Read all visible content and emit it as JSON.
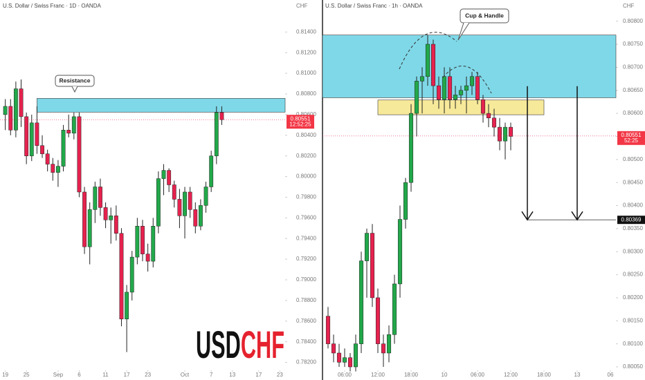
{
  "logo": {
    "base": "USD",
    "quote": "CHF"
  },
  "chart_data": [
    {
      "type": "candlestick",
      "title": "U.S. Dollar / Swiss Franc · 1D · OANDA",
      "y_axis_label": "CHF",
      "up_color": "#22a84a",
      "down_color": "#e5224e",
      "open": [
        0.806,
        0.8068,
        0.8045,
        0.8085,
        0.8058,
        0.802,
        0.8052,
        0.803,
        0.8022,
        0.8012,
        0.8004,
        0.801,
        0.8045,
        0.8042,
        0.8058,
        0.7985,
        0.7932,
        0.7968,
        0.799,
        0.797,
        0.7958,
        0.7962,
        0.7945,
        0.7862,
        0.7888,
        0.7922,
        0.7952,
        0.7925,
        0.7918,
        0.7952,
        0.7998,
        0.8006,
        0.7992,
        0.7978,
        0.7962,
        0.7985,
        0.7968,
        0.7952,
        0.7972,
        0.799,
        0.802,
        0.8062
      ],
      "high": [
        0.8075,
        0.8075,
        0.8092,
        0.8094,
        0.8062,
        0.806,
        0.8068,
        0.804,
        0.8026,
        0.8018,
        0.8016,
        0.805,
        0.806,
        0.8062,
        0.8062,
        0.799,
        0.7975,
        0.7995,
        0.7998,
        0.7975,
        0.797,
        0.7972,
        0.795,
        0.7895,
        0.7928,
        0.796,
        0.7958,
        0.7935,
        0.796,
        0.8005,
        0.8012,
        0.8008,
        0.7996,
        0.7988,
        0.799,
        0.799,
        0.7975,
        0.7978,
        0.7995,
        0.8025,
        0.8068,
        0.8068
      ],
      "low": [
        0.8045,
        0.804,
        0.8038,
        0.8048,
        0.8012,
        0.8015,
        0.8022,
        0.8018,
        0.8005,
        0.7996,
        0.799,
        0.8005,
        0.8038,
        0.8036,
        0.798,
        0.7925,
        0.7915,
        0.7955,
        0.7962,
        0.795,
        0.7935,
        0.7938,
        0.7855,
        0.783,
        0.788,
        0.7915,
        0.7918,
        0.7908,
        0.7912,
        0.7945,
        0.7982,
        0.7985,
        0.797,
        0.795,
        0.794,
        0.796,
        0.7945,
        0.7948,
        0.7965,
        0.7985,
        0.8012,
        0.805
      ],
      "close": [
        0.8068,
        0.8045,
        0.8085,
        0.8058,
        0.802,
        0.8052,
        0.803,
        0.8022,
        0.8012,
        0.8004,
        0.801,
        0.8045,
        0.8042,
        0.8058,
        0.7985,
        0.7932,
        0.7968,
        0.799,
        0.797,
        0.7958,
        0.7962,
        0.7945,
        0.7862,
        0.7888,
        0.7922,
        0.7952,
        0.7925,
        0.7918,
        0.7952,
        0.7998,
        0.8006,
        0.7992,
        0.7978,
        0.7962,
        0.7985,
        0.7968,
        0.7952,
        0.7972,
        0.799,
        0.802,
        0.8062,
        0.8055
      ],
      "xlim": [
        -1,
        53
      ],
      "xticks": [
        {
          "value": 0,
          "label": "19"
        },
        {
          "value": 4,
          "label": "25"
        },
        {
          "value": 10,
          "label": "Sep"
        },
        {
          "value": 14,
          "label": "6"
        },
        {
          "value": 19,
          "label": "11"
        },
        {
          "value": 23,
          "label": "17"
        },
        {
          "value": 27,
          "label": "23"
        },
        {
          "value": 34,
          "label": "Oct"
        },
        {
          "value": 39,
          "label": "7"
        },
        {
          "value": 43,
          "label": "13"
        },
        {
          "value": 48,
          "label": "17"
        },
        {
          "value": 52,
          "label": "23"
        }
      ],
      "ylim": [
        0.7813,
        0.8171
      ],
      "yticks": [
        {
          "value": 0.782,
          "label": "0.78200"
        },
        {
          "value": 0.784,
          "label": "0.78400"
        },
        {
          "value": 0.786,
          "label": "0.78600"
        },
        {
          "value": 0.788,
          "label": "0.78800"
        },
        {
          "value": 0.79,
          "label": "0.79000"
        },
        {
          "value": 0.792,
          "label": "0.79200"
        },
        {
          "value": 0.794,
          "label": "0.79400"
        },
        {
          "value": 0.796,
          "label": "0.79600"
        },
        {
          "value": 0.798,
          "label": "0.79800"
        },
        {
          "value": 0.8,
          "label": "0.80000"
        },
        {
          "value": 0.802,
          "label": "0.80200"
        },
        {
          "value": 0.804,
          "label": "0.80400"
        },
        {
          "value": 0.806,
          "label": "0.80600"
        },
        {
          "value": 0.808,
          "label": "0.80800"
        },
        {
          "value": 0.81,
          "label": "0.81000"
        },
        {
          "value": 0.812,
          "label": "0.81200"
        },
        {
          "value": 0.814,
          "label": "0.81400"
        }
      ],
      "zones": [
        {
          "from": 0.80624,
          "to": 0.80757,
          "x_from": 6,
          "color": "#7fd8e8",
          "annotation": "Resistance"
        }
      ],
      "last_price": {
        "value": 0.80551,
        "label": "0.80551",
        "countdown": "12:52:25"
      }
    },
    {
      "type": "candlestick",
      "title": "U.S. Dollar / Swiss Franc · 1h · OANDA",
      "y_axis_label": "CHF",
      "up_color": "#22a84a",
      "down_color": "#e5224e",
      "open": [
        0.8016,
        0.801,
        0.8008,
        0.8006,
        0.8007,
        0.8005,
        0.801,
        0.8028,
        0.8034,
        0.802,
        0.801,
        0.8008,
        0.8012,
        0.8023,
        0.8037,
        0.8045,
        0.806,
        0.8067,
        0.8068,
        0.8075,
        0.8066,
        0.8063,
        0.8068,
        0.8063,
        0.8064,
        0.8065,
        0.8066,
        0.8068,
        0.8063,
        0.806,
        0.8059,
        0.8057,
        0.8054,
        0.8057
      ],
      "high": [
        0.8018,
        0.8012,
        0.801,
        0.8009,
        0.8008,
        0.8012,
        0.803,
        0.8035,
        0.8036,
        0.8022,
        0.8012,
        0.8014,
        0.8025,
        0.804,
        0.8046,
        0.8062,
        0.8068,
        0.807,
        0.8077,
        0.8076,
        0.8068,
        0.807,
        0.807,
        0.8066,
        0.8066,
        0.8068,
        0.8069,
        0.8069,
        0.8064,
        0.8062,
        0.8061,
        0.8059,
        0.8058,
        0.8058
      ],
      "low": [
        0.8009,
        0.8006,
        0.8005,
        0.8005,
        0.8004,
        0.8004,
        0.8008,
        0.802,
        0.8018,
        0.8008,
        0.8005,
        0.8006,
        0.801,
        0.802,
        0.8035,
        0.8043,
        0.8055,
        0.806,
        0.8066,
        0.8062,
        0.8061,
        0.806,
        0.8061,
        0.8061,
        0.8062,
        0.806,
        0.8064,
        0.8062,
        0.8058,
        0.8057,
        0.8055,
        0.8052,
        0.805,
        0.8052
      ],
      "close": [
        0.801,
        0.8008,
        0.8006,
        0.8007,
        0.8005,
        0.801,
        0.8028,
        0.8034,
        0.802,
        0.801,
        0.8008,
        0.8012,
        0.8023,
        0.8037,
        0.8045,
        0.806,
        0.8067,
        0.8068,
        0.8075,
        0.8066,
        0.8063,
        0.8068,
        0.8063,
        0.8064,
        0.8065,
        0.8066,
        0.8068,
        0.8063,
        0.806,
        0.8059,
        0.8057,
        0.8054,
        0.8057,
        0.8055
      ],
      "xlim": [
        -1,
        52
      ],
      "xticks": [
        {
          "value": 3,
          "label": "06:00"
        },
        {
          "value": 9,
          "label": "12:00"
        },
        {
          "value": 15,
          "label": "18:00"
        },
        {
          "value": 21,
          "label": "10"
        },
        {
          "value": 27,
          "label": "06:00"
        },
        {
          "value": 33,
          "label": "12:00"
        },
        {
          "value": 39,
          "label": "18:00"
        },
        {
          "value": 45,
          "label": "13"
        },
        {
          "value": 51,
          "label": "06"
        }
      ],
      "ylim": [
        0.80044,
        0.80846
      ],
      "yticks": [
        {
          "value": 0.8005,
          "label": "0.80050"
        },
        {
          "value": 0.801,
          "label": "0.80100"
        },
        {
          "value": 0.8015,
          "label": "0.80150"
        },
        {
          "value": 0.802,
          "label": "0.80200"
        },
        {
          "value": 0.8025,
          "label": "0.80250"
        },
        {
          "value": 0.803,
          "label": "0.80300"
        },
        {
          "value": 0.8035,
          "label": "0.80350"
        },
        {
          "value": 0.804,
          "label": "0.80400"
        },
        {
          "value": 0.8045,
          "label": "0.80450"
        },
        {
          "value": 0.805,
          "label": "0.80500"
        },
        {
          "value": 0.8055,
          "label": "0.80550"
        },
        {
          "value": 0.806,
          "label": "0.80600"
        },
        {
          "value": 0.8065,
          "label": "0.80650"
        },
        {
          "value": 0.807,
          "label": "0.80700"
        },
        {
          "value": 0.8075,
          "label": "0.80750"
        },
        {
          "value": 0.808,
          "label": "0.80800"
        }
      ],
      "zones": [
        {
          "from": 0.80634,
          "to": 0.8077,
          "x_from": -1,
          "color": "#7fd8e8",
          "annotation": "Cup & Handle"
        },
        {
          "from": 0.80597,
          "to": 0.80629,
          "x_from": 9,
          "x_to": 39,
          "color": "#f7e99a"
        }
      ],
      "last_price": {
        "value": 0.80551,
        "label": "0.80551",
        "countdown": "52:25"
      },
      "target": {
        "value": 0.80369,
        "label": "0.80369",
        "arrows_x": [
          36,
          45
        ],
        "arrows_from": 0.80659
      }
    }
  ]
}
